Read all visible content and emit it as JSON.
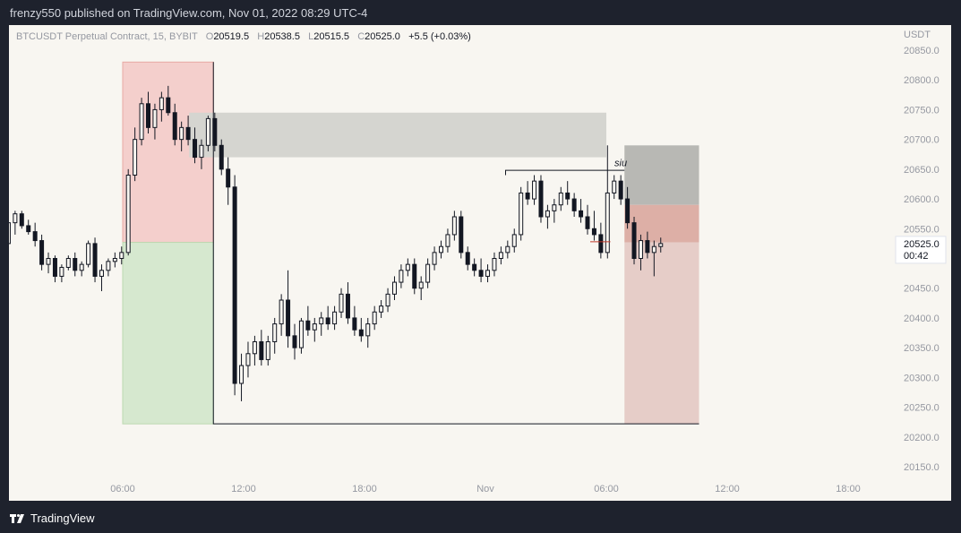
{
  "header": {
    "publish_text": "frenzy550 published on TradingView.com, Nov 01, 2022 08:29 UTC-4"
  },
  "legend": {
    "symbol": "BTCUSDT Perpetual Contract, 15, BYBIT",
    "o_label": "O",
    "o_value": "20519.5",
    "h_label": "H",
    "h_value": "20538.5",
    "l_label": "L",
    "l_value": "20515.5",
    "c_label": "C",
    "c_value": "20525.0",
    "change": "+5.5 (+0.03%)"
  },
  "footer": {
    "brand": "TradingView"
  },
  "colors": {
    "background": "#f8f6f1",
    "candle": "#131722",
    "red_zone": "#f4cfcc",
    "green_zone": "#d6e8cf",
    "gray_zone": "#d5d5d0",
    "dark_gray_zone": "#b8b8b4",
    "pink_zone": "#e6cdc8",
    "salmon_zone": "#ddafa6"
  },
  "chart_data": {
    "type": "candlestick",
    "symbol": "BTCUSDT Perpetual Contract",
    "interval": "15",
    "exchange": "BYBIT",
    "y_unit": "USDT",
    "ylim": [
      20130,
      20870
    ],
    "y_ticks": [
      "20850.0",
      "20800.0",
      "20750.0",
      "20700.0",
      "20650.0",
      "20600.0",
      "20550.0",
      "20500.0",
      "20450.0",
      "20400.0",
      "20350.0",
      "20300.0",
      "20250.0",
      "20200.0",
      "20150.0"
    ],
    "x_ticks": [
      "06:00",
      "12:00",
      "18:00",
      "Nov",
      "06:00",
      "12:00",
      "18:00"
    ],
    "last_price": "20525.0",
    "countdown": "00:42",
    "annotation": "siu",
    "candles": [
      [
        20535,
        20555,
        20510,
        20525
      ],
      [
        20525,
        20565,
        20520,
        20560
      ],
      [
        20560,
        20580,
        20540,
        20575
      ],
      [
        20575,
        20580,
        20550,
        20555
      ],
      [
        20555,
        20565,
        20540,
        20545
      ],
      [
        20545,
        20560,
        20520,
        20530
      ],
      [
        20530,
        20540,
        20480,
        20490
      ],
      [
        20490,
        20510,
        20475,
        20500
      ],
      [
        20500,
        20505,
        20460,
        20470
      ],
      [
        20470,
        20490,
        20460,
        20485
      ],
      [
        20485,
        20505,
        20480,
        20500
      ],
      [
        20500,
        20510,
        20470,
        20480
      ],
      [
        20480,
        20495,
        20470,
        20490
      ],
      [
        20490,
        20530,
        20485,
        20525
      ],
      [
        20525,
        20535,
        20460,
        20470
      ],
      [
        20470,
        20490,
        20445,
        20480
      ],
      [
        20480,
        20500,
        20470,
        20495
      ],
      [
        20495,
        20510,
        20485,
        20500
      ],
      [
        20500,
        20520,
        20490,
        20510
      ],
      [
        20510,
        20650,
        20505,
        20640
      ],
      [
        20640,
        20720,
        20630,
        20700
      ],
      [
        20700,
        20770,
        20690,
        20760
      ],
      [
        20760,
        20780,
        20710,
        20720
      ],
      [
        20720,
        20760,
        20700,
        20750
      ],
      [
        20750,
        20780,
        20730,
        20770
      ],
      [
        20770,
        20790,
        20740,
        20745
      ],
      [
        20745,
        20760,
        20690,
        20700
      ],
      [
        20700,
        20730,
        20680,
        20720
      ],
      [
        20720,
        20740,
        20690,
        20700
      ],
      [
        20700,
        20720,
        20660,
        20670
      ],
      [
        20670,
        20700,
        20650,
        20690
      ],
      [
        20690,
        20740,
        20680,
        20735
      ],
      [
        20735,
        20745,
        20680,
        20690
      ],
      [
        20690,
        20700,
        20640,
        20650
      ],
      [
        20650,
        20670,
        20590,
        20620
      ],
      [
        20620,
        20640,
        20270,
        20290
      ],
      [
        20290,
        20340,
        20260,
        20320
      ],
      [
        20320,
        20360,
        20300,
        20340
      ],
      [
        20340,
        20370,
        20320,
        20360
      ],
      [
        20360,
        20380,
        20320,
        20330
      ],
      [
        20330,
        20370,
        20320,
        20360
      ],
      [
        20360,
        20400,
        20340,
        20390
      ],
      [
        20390,
        20440,
        20370,
        20430
      ],
      [
        20430,
        20480,
        20350,
        20370
      ],
      [
        20370,
        20390,
        20330,
        20350
      ],
      [
        20350,
        20400,
        20340,
        20395
      ],
      [
        20395,
        20420,
        20370,
        20380
      ],
      [
        20380,
        20400,
        20360,
        20390
      ],
      [
        20390,
        20410,
        20370,
        20400
      ],
      [
        20400,
        20420,
        20380,
        20390
      ],
      [
        20390,
        20420,
        20380,
        20410
      ],
      [
        20410,
        20450,
        20400,
        20440
      ],
      [
        20440,
        20460,
        20390,
        20400
      ],
      [
        20400,
        20420,
        20370,
        20380
      ],
      [
        20380,
        20400,
        20360,
        20370
      ],
      [
        20370,
        20400,
        20350,
        20390
      ],
      [
        20390,
        20420,
        20380,
        20410
      ],
      [
        20410,
        20430,
        20400,
        20420
      ],
      [
        20420,
        20450,
        20410,
        20440
      ],
      [
        20440,
        20470,
        20430,
        20460
      ],
      [
        20460,
        20490,
        20450,
        20480
      ],
      [
        20480,
        20500,
        20470,
        20490
      ],
      [
        20490,
        20500,
        20440,
        20450
      ],
      [
        20450,
        20470,
        20430,
        20460
      ],
      [
        20460,
        20500,
        20450,
        20490
      ],
      [
        20490,
        20520,
        20480,
        20510
      ],
      [
        20510,
        20530,
        20500,
        20520
      ],
      [
        20520,
        20550,
        20510,
        20540
      ],
      [
        20540,
        20580,
        20530,
        20570
      ],
      [
        20570,
        20580,
        20500,
        20510
      ],
      [
        20510,
        20520,
        20480,
        20490
      ],
      [
        20490,
        20500,
        20470,
        20480
      ],
      [
        20480,
        20500,
        20460,
        20470
      ],
      [
        20470,
        20490,
        20460,
        20480
      ],
      [
        20480,
        20510,
        20470,
        20500
      ],
      [
        20500,
        20520,
        20490,
        20510
      ],
      [
        20510,
        20530,
        20500,
        20520
      ],
      [
        20520,
        20550,
        20510,
        20540
      ],
      [
        20540,
        20620,
        20530,
        20610
      ],
      [
        20610,
        20630,
        20590,
        20600
      ],
      [
        20600,
        20640,
        20590,
        20630
      ],
      [
        20630,
        20640,
        20560,
        20570
      ],
      [
        20570,
        20590,
        20550,
        20580
      ],
      [
        20580,
        20600,
        20560,
        20590
      ],
      [
        20590,
        20620,
        20580,
        20610
      ],
      [
        20610,
        20630,
        20590,
        20600
      ],
      [
        20600,
        20610,
        20570,
        20580
      ],
      [
        20580,
        20600,
        20560,
        20570
      ],
      [
        20570,
        20590,
        20540,
        20550
      ],
      [
        20550,
        20580,
        20530,
        20540
      ],
      [
        20540,
        20560,
        20500,
        20510
      ],
      [
        20510,
        20690,
        20500,
        20610
      ],
      [
        20610,
        20640,
        20600,
        20630
      ],
      [
        20630,
        20640,
        20590,
        20600
      ],
      [
        20600,
        20620,
        20550,
        20560
      ],
      [
        20560,
        20570,
        20490,
        20500
      ],
      [
        20500,
        20540,
        20480,
        20530
      ],
      [
        20530,
        20545,
        20500,
        20510
      ],
      [
        20510,
        20530,
        20470,
        20520
      ],
      [
        20520,
        20535,
        20510,
        20525
      ]
    ]
  }
}
